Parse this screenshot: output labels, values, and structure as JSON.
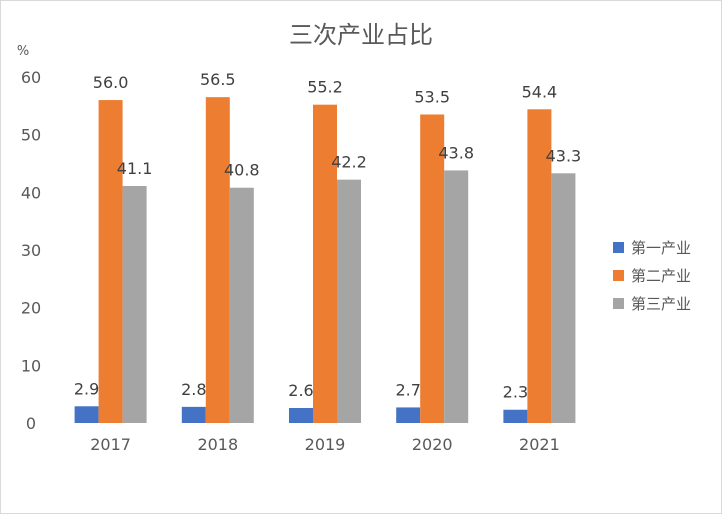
{
  "chart_data": {
    "type": "bar",
    "title": "三次产业占比",
    "unit_label": "%",
    "categories": [
      "2017",
      "2018",
      "2019",
      "2020",
      "2021"
    ],
    "series": [
      {
        "name": "第一产业",
        "color": "#4472c4",
        "values": [
          2.9,
          2.8,
          2.6,
          2.7,
          2.3
        ]
      },
      {
        "name": "第二产业",
        "color": "#ed7d31",
        "values": [
          56.0,
          56.5,
          55.2,
          53.5,
          54.4
        ]
      },
      {
        "name": "第三产业",
        "color": "#a5a5a5",
        "values": [
          41.1,
          40.8,
          42.2,
          43.8,
          43.3
        ]
      }
    ],
    "y_ticks": [
      "0",
      "10",
      "20",
      "30",
      "40",
      "50",
      "60"
    ],
    "ylim": [
      0,
      60
    ],
    "grid": false,
    "legend_position": "right"
  }
}
